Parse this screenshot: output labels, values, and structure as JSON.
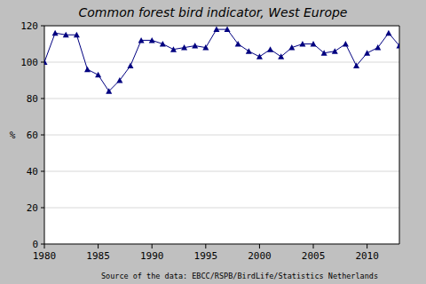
{
  "chart_data": {
    "type": "line",
    "title": "Common forest bird indicator, West Europe",
    "y_label": "%",
    "source": "Source of the data: EBCC/RSPB/BirdLife/Statistics Netherlands",
    "x": [
      1980,
      1981,
      1982,
      1983,
      1984,
      1985,
      1986,
      1987,
      1988,
      1989,
      1990,
      1991,
      1992,
      1993,
      1994,
      1995,
      1996,
      1997,
      1998,
      1999,
      2000,
      2001,
      2002,
      2003,
      2004,
      2005,
      2006,
      2007,
      2008,
      2009,
      2010,
      2011,
      2012,
      2013
    ],
    "values": [
      100,
      116,
      115,
      115,
      96,
      93,
      84,
      90,
      98,
      112,
      112,
      110,
      107,
      108,
      109,
      108,
      118,
      118,
      110,
      106,
      103,
      107,
      103,
      108,
      110,
      110,
      105,
      106,
      110,
      98,
      105,
      108,
      116,
      109
    ],
    "color": "#000080",
    "marker": "triangle",
    "line_style": "solid",
    "xlim": [
      1980,
      2013
    ],
    "xticks": [
      1980,
      1985,
      1990,
      1995,
      2000,
      2005,
      2010
    ],
    "ylim": [
      0,
      120
    ],
    "yticks": [
      0,
      20,
      40,
      60,
      80,
      100,
      120
    ],
    "grid": true
  }
}
